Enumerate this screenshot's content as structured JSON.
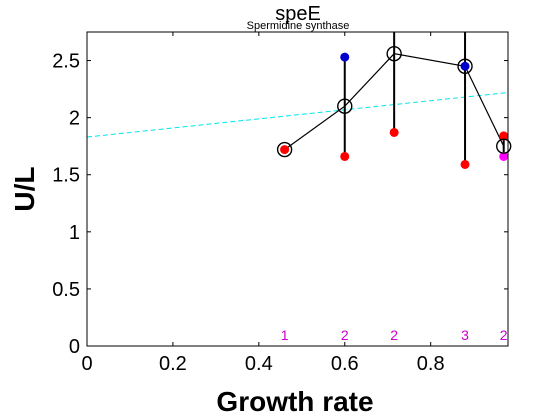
{
  "chart_data": {
    "type": "scatter",
    "title": "speE",
    "subtitle": "Spermidine synthase",
    "xlabel": "Growth rate",
    "ylabel": "U/L",
    "xlim": [
      0,
      0.98
    ],
    "ylim": [
      0,
      2.75
    ],
    "xticks": [
      "0",
      "0.2",
      "0.4",
      "0.6",
      "0.8"
    ],
    "yticks": [
      "0",
      "0.5",
      "1",
      "1.5",
      "2",
      "2.5"
    ],
    "grid": false,
    "colors": {
      "red": "#ff0000",
      "blue": "#0000cc",
      "magenta": "#ff00ff",
      "trend": "#00e5ee",
      "mean": "#000000",
      "count": "#cc00cc"
    },
    "trend_line": {
      "x": [
        0,
        0.98
      ],
      "y": [
        1.83,
        2.22
      ]
    },
    "groups": [
      {
        "x": 0.46,
        "mean": 1.72,
        "range": [
          1.72,
          1.72
        ],
        "count": "1",
        "points": [
          {
            "y": 1.72,
            "color": "red"
          }
        ]
      },
      {
        "x": 0.6,
        "mean": 2.1,
        "range": [
          1.66,
          2.53
        ],
        "count": "2",
        "points": [
          {
            "y": 2.53,
            "color": "blue"
          },
          {
            "y": 1.66,
            "color": "red"
          }
        ]
      },
      {
        "x": 0.715,
        "mean": 2.56,
        "range": [
          1.87,
          2.75
        ],
        "count": "2",
        "points": [
          {
            "y": 1.87,
            "color": "red"
          }
        ]
      },
      {
        "x": 0.88,
        "mean": 2.45,
        "range": [
          1.59,
          2.75
        ],
        "count": "3",
        "points": [
          {
            "y": 2.45,
            "color": "blue"
          },
          {
            "y": 1.59,
            "color": "red"
          }
        ]
      },
      {
        "x": 0.97,
        "mean": 1.75,
        "range": [
          1.66,
          1.84
        ],
        "count": "2",
        "points": [
          {
            "y": 1.84,
            "color": "red"
          },
          {
            "y": 1.66,
            "color": "magenta"
          }
        ]
      }
    ]
  }
}
